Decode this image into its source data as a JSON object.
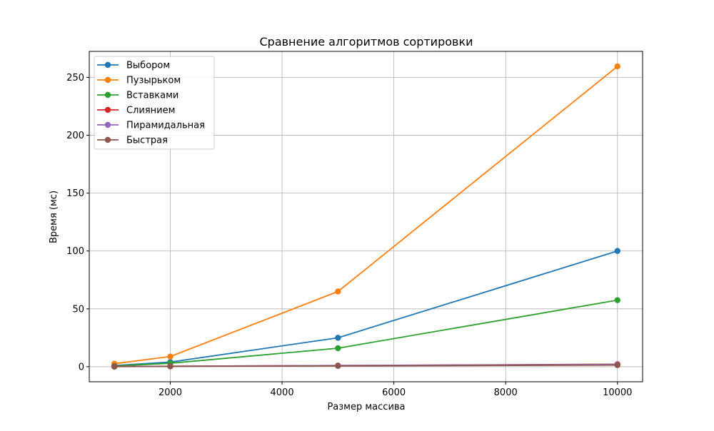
{
  "chart_data": {
    "type": "line",
    "title": "Сравнение алгоритмов сортировки",
    "xlabel": "Размер массива",
    "ylabel": "Время (мс)",
    "x": [
      1000,
      2000,
      5000,
      10000
    ],
    "xlim": [
      550,
      10450
    ],
    "ylim": [
      -13,
      272.5
    ],
    "xticks": [
      2000,
      4000,
      6000,
      8000,
      10000
    ],
    "xtick_labels": [
      "2000",
      "4000",
      "6000",
      "8000",
      "10000"
    ],
    "yticks": [
      0,
      50,
      100,
      150,
      200,
      250
    ],
    "ytick_labels": [
      "0",
      "50",
      "100",
      "150",
      "200",
      "250"
    ],
    "grid": true,
    "legend_position": "top-left",
    "markers": "circle",
    "series": [
      {
        "name": "Выбором",
        "color": "#1f77b4",
        "values": [
          1.0,
          4.0,
          25.0,
          100.0
        ]
      },
      {
        "name": "Пузырьком",
        "color": "#ff7f0e",
        "values": [
          2.6,
          8.8,
          65.0,
          259.5
        ]
      },
      {
        "name": "Вставками",
        "color": "#2ca02c",
        "values": [
          0.6,
          3.0,
          16.0,
          57.5
        ]
      },
      {
        "name": "Слиянием",
        "color": "#d62728",
        "values": [
          0.2,
          0.4,
          1.0,
          2.2
        ]
      },
      {
        "name": "Пирамидальная",
        "color": "#9467bd",
        "values": [
          0.2,
          0.4,
          1.0,
          2.0
        ]
      },
      {
        "name": "Быстрая",
        "color": "#8c564b",
        "values": [
          0.1,
          0.3,
          0.7,
          1.4
        ]
      }
    ]
  }
}
